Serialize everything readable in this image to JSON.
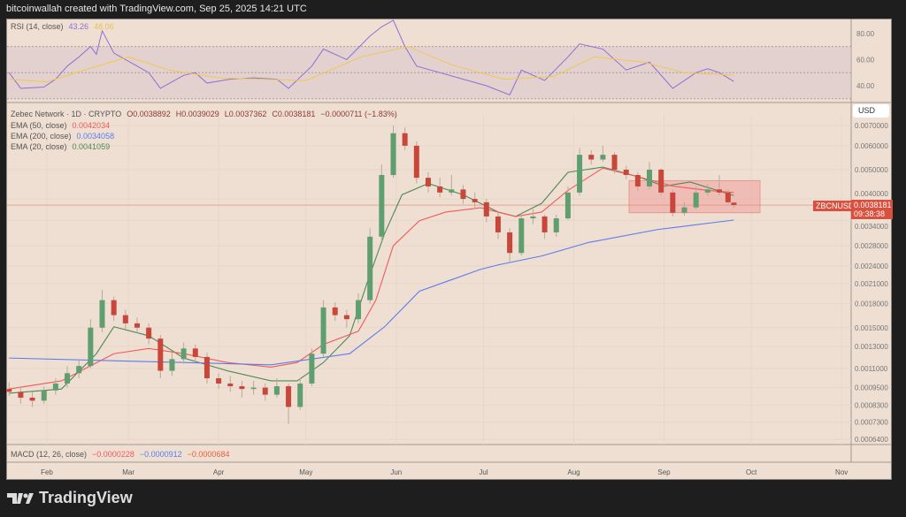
{
  "header": {
    "text": "bitcoinwallah created with TradingView.com, Sep 25, 2025 14:21 UTC"
  },
  "footer": {
    "brand": "TradingView"
  },
  "legend": {
    "symbol": "Zebec Network · 1D · CRYPTO",
    "open": "O0.0038892",
    "high": "H0.0039029",
    "low": "L0.0037362",
    "close": "C0.0038181",
    "change": "−0.0000711 (−1.83%)",
    "ema50_label": "EMA (50, close)",
    "ema50_value": "0.0042034",
    "ema200_label": "EMA (200, close)",
    "ema200_value": "0.0034058",
    "ema20_label": "EMA (20, close)",
    "ema20_value": "0.0041059"
  },
  "rsi_legend": {
    "label": "RSI (14, close)",
    "value": "43.26",
    "ma_value": "48.06"
  },
  "macd_legend": {
    "label": "MACD (12, 26, close)",
    "macd": "−0.0000228",
    "signal": "−0.0000912",
    "hist": "−0.0000684"
  },
  "price_axis": {
    "currency": "USD",
    "symbol_tag": "ZBCNUSD",
    "last_price": "0.0038181",
    "countdown": "09:38:38"
  },
  "colors": {
    "up": "#5f9e6e",
    "down": "#c8473a",
    "ema20": "#4c8a55",
    "ema50": "#f05a5a",
    "ema200": "#5b7cf0",
    "rsi": "#8d6fd6",
    "rsi_ma": "#f0c850",
    "bg": "#efdfd2"
  },
  "chart_data": [
    {
      "type": "candlestick",
      "title": "Zebec Network · 1D · CRYPTO",
      "y_scale": "log",
      "ylim": [
        0.00062,
        0.0072
      ],
      "y_ticks": [
        "0.0070000",
        "0.0060000",
        "0.0050000",
        "0.0040000",
        "0.0034000",
        "0.0028000",
        "0.0024000",
        "0.0021000",
        "0.0018000",
        "0.0015000",
        "0.0013000",
        "0.0011000",
        "0.0009500",
        "0.0008300",
        "0.0007300",
        "0.0006400"
      ],
      "x_ticks": [
        "Feb",
        "Mar",
        "Apr",
        "May",
        "Jun",
        "Jul",
        "Aug",
        "Sep",
        "Oct",
        "Nov"
      ],
      "candles": [
        [
          "2025-01-19",
          0.00094,
          0.00099,
          0.00089,
          0.00092
        ],
        [
          "2025-01-23",
          0.00092,
          0.00096,
          0.00084,
          0.00088
        ],
        [
          "2025-01-27",
          0.00088,
          0.00092,
          0.00082,
          0.00086
        ],
        [
          "2025-01-31",
          0.00086,
          0.00096,
          0.00084,
          0.00093
        ],
        [
          "2025-02-04",
          0.00093,
          0.00102,
          0.0009,
          0.00098
        ],
        [
          "2025-02-08",
          0.00098,
          0.00112,
          0.00095,
          0.00106
        ],
        [
          "2025-02-12",
          0.00106,
          0.00118,
          0.00102,
          0.00112
        ],
        [
          "2025-02-16",
          0.00112,
          0.0016,
          0.0011,
          0.0015
        ],
        [
          "2025-02-20",
          0.0015,
          0.002,
          0.00145,
          0.00185
        ],
        [
          "2025-02-24",
          0.00185,
          0.0019,
          0.00158,
          0.00165
        ],
        [
          "2025-02-28",
          0.00165,
          0.00172,
          0.00148,
          0.00155
        ],
        [
          "2025-03-04",
          0.00155,
          0.00162,
          0.00144,
          0.0015
        ],
        [
          "2025-03-08",
          0.0015,
          0.00155,
          0.00132,
          0.00138
        ],
        [
          "2025-03-12",
          0.00138,
          0.00142,
          0.00102,
          0.00108
        ],
        [
          "2025-03-16",
          0.00108,
          0.00124,
          0.00104,
          0.00118
        ],
        [
          "2025-03-20",
          0.00118,
          0.00134,
          0.00114,
          0.00128
        ],
        [
          "2025-03-24",
          0.00128,
          0.00132,
          0.00115,
          0.0012
        ],
        [
          "2025-03-28",
          0.0012,
          0.00124,
          0.00098,
          0.00102
        ],
        [
          "2025-04-01",
          0.00102,
          0.00106,
          0.00094,
          0.00098
        ],
        [
          "2025-04-05",
          0.00098,
          0.00104,
          0.00092,
          0.00096
        ],
        [
          "2025-04-09",
          0.00096,
          0.001,
          0.00088,
          0.00094
        ],
        [
          "2025-04-13",
          0.00094,
          0.001,
          0.0009,
          0.00095
        ],
        [
          "2025-04-17",
          0.00095,
          0.00098,
          0.00086,
          0.0009
        ],
        [
          "2025-04-21",
          0.0009,
          0.00102,
          0.00088,
          0.00096
        ],
        [
          "2025-04-25",
          0.00096,
          0.00098,
          0.00072,
          0.00082
        ],
        [
          "2025-04-29",
          0.00082,
          0.00102,
          0.0008,
          0.00098
        ],
        [
          "2025-05-03",
          0.00098,
          0.00128,
          0.00096,
          0.00123
        ],
        [
          "2025-05-07",
          0.00123,
          0.00185,
          0.0012,
          0.00175
        ],
        [
          "2025-05-11",
          0.00175,
          0.00182,
          0.00158,
          0.00165
        ],
        [
          "2025-05-15",
          0.00165,
          0.00172,
          0.0015,
          0.0016
        ],
        [
          "2025-05-19",
          0.0016,
          0.00195,
          0.00155,
          0.00185
        ],
        [
          "2025-05-23",
          0.00185,
          0.0032,
          0.0018,
          0.003
        ],
        [
          "2025-05-27",
          0.003,
          0.0052,
          0.0029,
          0.0048
        ],
        [
          "2025-05-31",
          0.0048,
          0.007,
          0.0047,
          0.0066
        ],
        [
          "2025-06-04",
          0.0066,
          0.0069,
          0.0058,
          0.006
        ],
        [
          "2025-06-08",
          0.006,
          0.0062,
          0.0045,
          0.0047
        ],
        [
          "2025-06-12",
          0.0047,
          0.0049,
          0.0042,
          0.0044
        ],
        [
          "2025-06-16",
          0.0044,
          0.0047,
          0.00405,
          0.0042
        ],
        [
          "2025-06-20",
          0.0042,
          0.0048,
          0.0041,
          0.0043
        ],
        [
          "2025-06-24",
          0.0043,
          0.00445,
          0.00385,
          0.004
        ],
        [
          "2025-06-28",
          0.004,
          0.0042,
          0.00375,
          0.0039
        ],
        [
          "2025-07-02",
          0.0039,
          0.004,
          0.00335,
          0.0035
        ],
        [
          "2025-07-06",
          0.0035,
          0.0036,
          0.00295,
          0.0031
        ],
        [
          "2025-07-10",
          0.0031,
          0.0032,
          0.00245,
          0.00265
        ],
        [
          "2025-07-14",
          0.00265,
          0.0036,
          0.0026,
          0.00345
        ],
        [
          "2025-07-18",
          0.00345,
          0.0037,
          0.0033,
          0.0035
        ],
        [
          "2025-07-22",
          0.0035,
          0.00355,
          0.00295,
          0.0031
        ],
        [
          "2025-07-26",
          0.0031,
          0.00355,
          0.003,
          0.00345
        ],
        [
          "2025-07-30",
          0.00345,
          0.0044,
          0.0034,
          0.0042
        ],
        [
          "2025-08-03",
          0.0042,
          0.0059,
          0.0041,
          0.0056
        ],
        [
          "2025-08-07",
          0.0056,
          0.0058,
          0.0052,
          0.0054
        ],
        [
          "2025-08-11",
          0.0054,
          0.006,
          0.0053,
          0.0056
        ],
        [
          "2025-08-15",
          0.0056,
          0.0057,
          0.00485,
          0.005
        ],
        [
          "2025-08-19",
          0.005,
          0.00515,
          0.00465,
          0.0048
        ],
        [
          "2025-08-23",
          0.0048,
          0.0049,
          0.00425,
          0.0044
        ],
        [
          "2025-08-27",
          0.0044,
          0.0053,
          0.0043,
          0.005
        ],
        [
          "2025-08-31",
          0.005,
          0.00505,
          0.0041,
          0.0042
        ],
        [
          "2025-09-04",
          0.0042,
          0.0043,
          0.0035,
          0.0036
        ],
        [
          "2025-09-08",
          0.0036,
          0.0039,
          0.00352,
          0.00375
        ],
        [
          "2025-09-12",
          0.00375,
          0.0044,
          0.0037,
          0.0042
        ],
        [
          "2025-09-16",
          0.0042,
          0.0045,
          0.0041,
          0.0043
        ],
        [
          "2025-09-20",
          0.0043,
          0.0048,
          0.0041,
          0.0042
        ],
        [
          "2025-09-23",
          0.0042,
          0.0043,
          0.00385,
          0.0039
        ],
        [
          "2025-09-25",
          0.0038892,
          0.0039029,
          0.0037362,
          0.0038181
        ]
      ],
      "series": [
        {
          "name": "EMA (20, close)",
          "color": "#4c8a55",
          "points": [
            [
              "2025-01-19",
              0.00091
            ],
            [
              "2025-02-06",
              0.00094
            ],
            [
              "2025-02-18",
              0.00123
            ],
            [
              "2025-02-24",
              0.00151
            ],
            [
              "2025-03-08",
              0.00141
            ],
            [
              "2025-03-20",
              0.00119
            ],
            [
              "2025-04-04",
              0.00108
            ],
            [
              "2025-04-19",
              0.001
            ],
            [
              "2025-04-28",
              0.001
            ],
            [
              "2025-05-07",
              0.00115
            ],
            [
              "2025-05-16",
              0.00141
            ],
            [
              "2025-05-22",
              0.00211
            ],
            [
              "2025-05-28",
              0.00307
            ],
            [
              "2025-06-03",
              0.00413
            ],
            [
              "2025-06-12",
              0.0045
            ],
            [
              "2025-06-24",
              0.00413
            ],
            [
              "2025-07-06",
              0.00362
            ],
            [
              "2025-07-12",
              0.0035
            ],
            [
              "2025-07-21",
              0.00387
            ],
            [
              "2025-07-30",
              0.0049
            ],
            [
              "2025-08-11",
              0.0051
            ],
            [
              "2025-08-23",
              0.00474
            ],
            [
              "2025-09-01",
              0.00441
            ],
            [
              "2025-09-10",
              0.00455
            ],
            [
              "2025-09-25",
              0.0041059
            ]
          ]
        },
        {
          "name": "EMA (50, close)",
          "color": "#f05a5a",
          "points": [
            [
              "2025-01-19",
              0.00094
            ],
            [
              "2025-02-06",
              0.001
            ],
            [
              "2025-02-24",
              0.00123
            ],
            [
              "2025-03-08",
              0.00128
            ],
            [
              "2025-03-20",
              0.00123
            ],
            [
              "2025-04-04",
              0.00115
            ],
            [
              "2025-04-19",
              0.00111
            ],
            [
              "2025-04-28",
              0.00115
            ],
            [
              "2025-05-07",
              0.00132
            ],
            [
              "2025-05-19",
              0.00146
            ],
            [
              "2025-05-25",
              0.00185
            ],
            [
              "2025-05-31",
              0.0028
            ],
            [
              "2025-06-09",
              0.00339
            ],
            [
              "2025-06-18",
              0.00362
            ],
            [
              "2025-06-30",
              0.00374
            ],
            [
              "2025-07-12",
              0.0035
            ],
            [
              "2025-07-21",
              0.00362
            ],
            [
              "2025-07-30",
              0.00427
            ],
            [
              "2025-08-11",
              0.00506
            ],
            [
              "2025-08-23",
              0.00474
            ],
            [
              "2025-09-04",
              0.00441
            ],
            [
              "2025-09-16",
              0.00427
            ],
            [
              "2025-09-25",
              0.0042034
            ]
          ]
        },
        {
          "name": "EMA (200, close)",
          "color": "#5b7cf0",
          "points": [
            [
              "2025-01-19",
              0.00119
            ],
            [
              "2025-03-20",
              0.00115
            ],
            [
              "2025-04-19",
              0.00113
            ],
            [
              "2025-05-16",
              0.00123
            ],
            [
              "2025-05-28",
              0.00151
            ],
            [
              "2025-06-09",
              0.00198
            ],
            [
              "2025-06-30",
              0.00234
            ],
            [
              "2025-07-06",
              0.00242
            ],
            [
              "2025-07-21",
              0.00259
            ],
            [
              "2025-08-06",
              0.00287
            ],
            [
              "2025-08-30",
              0.00317
            ],
            [
              "2025-09-25",
              0.0034058
            ]
          ]
        }
      ],
      "annotations": [
        {
          "type": "rectangle",
          "from": "2025-08-20",
          "to": "2025-10-04",
          "top": 0.0046,
          "bottom": 0.0036
        }
      ]
    },
    {
      "type": "line",
      "title": "RSI (14, close)",
      "ylim": [
        25,
        95
      ],
      "y_ticks": [
        "80.00",
        "60.00",
        "40.00"
      ],
      "band": [
        30,
        70
      ],
      "series": [
        {
          "name": "RSI",
          "color": "#8d6fd6",
          "points": [
            [
              "2025-01-19",
              50
            ],
            [
              "2025-01-23",
              38
            ],
            [
              "2025-01-31",
              39
            ],
            [
              "2025-02-04",
              45
            ],
            [
              "2025-02-08",
              55
            ],
            [
              "2025-02-12",
              62
            ],
            [
              "2025-02-16",
              70
            ],
            [
              "2025-02-18",
              64
            ],
            [
              "2025-02-20",
              82
            ],
            [
              "2025-02-24",
              65
            ],
            [
              "2025-03-04",
              55
            ],
            [
              "2025-03-08",
              50
            ],
            [
              "2025-03-12",
              38
            ],
            [
              "2025-03-20",
              48
            ],
            [
              "2025-03-24",
              50
            ],
            [
              "2025-03-28",
              42
            ],
            [
              "2025-04-05",
              45
            ],
            [
              "2025-04-13",
              46
            ],
            [
              "2025-04-21",
              45
            ],
            [
              "2025-04-25",
              38
            ],
            [
              "2025-05-03",
              55
            ],
            [
              "2025-05-07",
              68
            ],
            [
              "2025-05-15",
              60
            ],
            [
              "2025-05-23",
              78
            ],
            [
              "2025-05-27",
              85
            ],
            [
              "2025-05-31",
              90
            ],
            [
              "2025-06-04",
              70
            ],
            [
              "2025-06-08",
              55
            ],
            [
              "2025-06-16",
              50
            ],
            [
              "2025-06-24",
              45
            ],
            [
              "2025-07-02",
              40
            ],
            [
              "2025-07-10",
              33
            ],
            [
              "2025-07-14",
              52
            ],
            [
              "2025-07-22",
              44
            ],
            [
              "2025-07-30",
              62
            ],
            [
              "2025-08-03",
              72
            ],
            [
              "2025-08-11",
              68
            ],
            [
              "2025-08-19",
              52
            ],
            [
              "2025-08-27",
              58
            ],
            [
              "2025-09-04",
              38
            ],
            [
              "2025-09-12",
              50
            ],
            [
              "2025-09-16",
              53
            ],
            [
              "2025-09-20",
              50
            ],
            [
              "2025-09-25",
              43.26
            ]
          ]
        },
        {
          "name": "RSI-based MA",
          "color": "#f0c850",
          "points": [
            [
              "2025-01-19",
              45
            ],
            [
              "2025-02-01",
              43
            ],
            [
              "2025-02-14",
              52
            ],
            [
              "2025-03-01",
              62
            ],
            [
              "2025-03-15",
              52
            ],
            [
              "2025-04-01",
              46
            ],
            [
              "2025-05-01",
              44
            ],
            [
              "2025-05-20",
              62
            ],
            [
              "2025-06-05",
              70
            ],
            [
              "2025-06-20",
              56
            ],
            [
              "2025-07-08",
              45
            ],
            [
              "2025-07-25",
              47
            ],
            [
              "2025-08-08",
              62
            ],
            [
              "2025-08-25",
              58
            ],
            [
              "2025-09-08",
              50
            ],
            [
              "2025-09-25",
              48.06
            ]
          ]
        }
      ]
    }
  ]
}
